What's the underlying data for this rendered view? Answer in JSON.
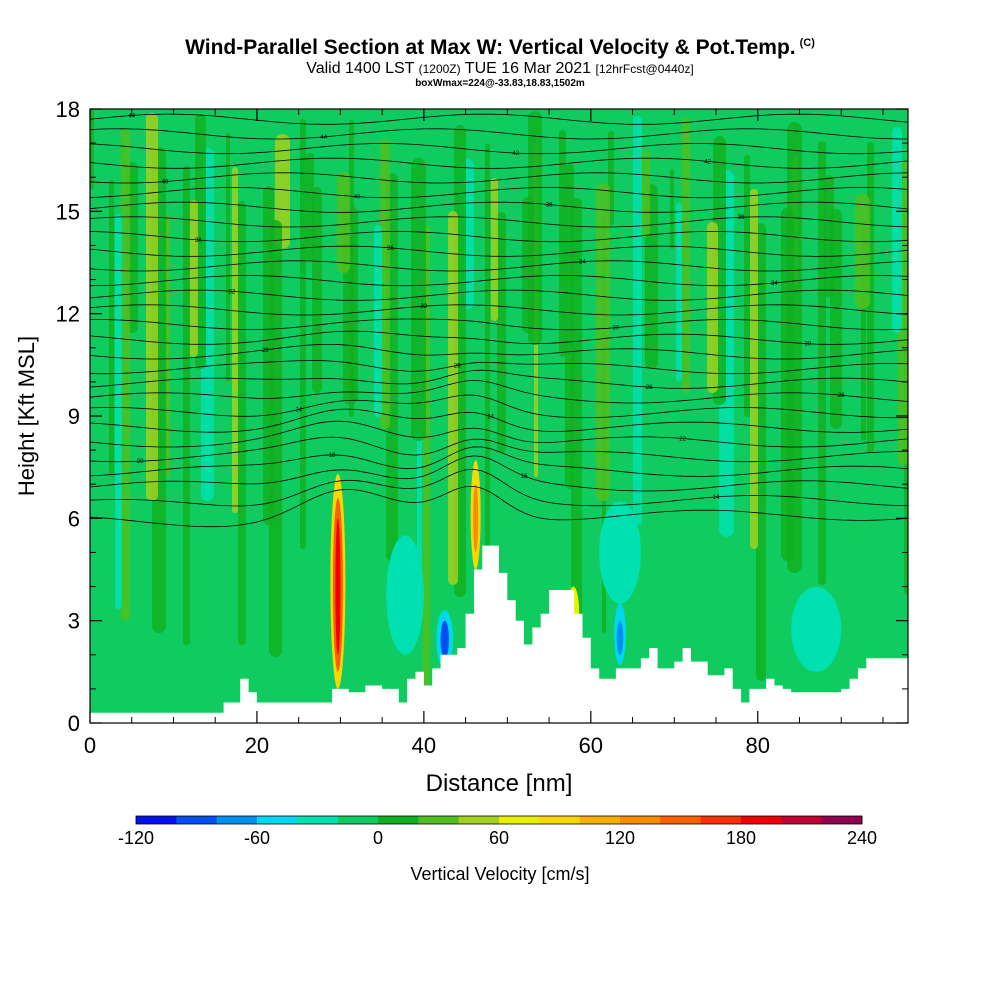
{
  "header": {
    "title": "Wind-Parallel Section at Max W: Vertical Velocity & Pot.Temp.",
    "copyright_mark": "(C)",
    "subtitle_main": "Valid 1400 LST",
    "subtitle_zulu": "(1200Z)",
    "subtitle_date": "TUE 16 Mar 2021",
    "subtitle_fcst": "[12hrFcst@0440z]",
    "box_info": "boxWmax=224@-33.83,18.83,1502m"
  },
  "chart_data": {
    "type": "heatmap",
    "xlabel": "Distance [nm]",
    "ylabel": "Height [Kft MSL]",
    "xlim": [
      0,
      98
    ],
    "ylim": [
      0,
      18
    ],
    "x_ticks": [
      0,
      20,
      40,
      60,
      80
    ],
    "y_ticks": [
      0,
      3,
      6,
      9,
      12,
      15,
      18
    ],
    "terrain": [
      [
        0,
        0.3
      ],
      [
        16,
        0.3
      ],
      [
        16,
        0.6
      ],
      [
        18,
        0.6
      ],
      [
        18,
        1.3
      ],
      [
        19,
        1.3
      ],
      [
        19,
        0.9
      ],
      [
        20,
        0.9
      ],
      [
        20,
        0.6
      ],
      [
        29,
        0.6
      ],
      [
        29,
        1.0
      ],
      [
        31,
        1.0
      ],
      [
        31,
        0.9
      ],
      [
        33,
        0.9
      ],
      [
        33,
        1.1
      ],
      [
        35,
        1.1
      ],
      [
        35,
        1.0
      ],
      [
        37,
        1.0
      ],
      [
        37,
        0.6
      ],
      [
        38,
        0.6
      ],
      [
        38,
        1.3
      ],
      [
        39,
        1.3
      ],
      [
        39,
        1.5
      ],
      [
        40,
        1.5
      ],
      [
        40,
        1.1
      ],
      [
        41,
        1.1
      ],
      [
        41,
        1.6
      ],
      [
        42,
        1.6
      ],
      [
        42,
        2.0
      ],
      [
        44,
        2.0
      ],
      [
        44,
        2.2
      ],
      [
        45,
        2.2
      ],
      [
        45,
        3.2
      ],
      [
        46,
        3.2
      ],
      [
        46,
        4.5
      ],
      [
        47,
        4.5
      ],
      [
        47,
        5.2
      ],
      [
        49,
        5.2
      ],
      [
        49,
        4.4
      ],
      [
        50,
        4.4
      ],
      [
        50,
        3.6
      ],
      [
        51,
        3.6
      ],
      [
        51,
        3.0
      ],
      [
        52,
        3.0
      ],
      [
        52,
        2.3
      ],
      [
        53,
        2.3
      ],
      [
        53,
        2.8
      ],
      [
        54,
        2.8
      ],
      [
        54,
        3.2
      ],
      [
        55,
        3.2
      ],
      [
        55,
        3.9
      ],
      [
        58,
        3.9
      ],
      [
        58,
        3.2
      ],
      [
        59,
        3.2
      ],
      [
        59,
        2.5
      ],
      [
        60,
        2.5
      ],
      [
        60,
        1.6
      ],
      [
        61,
        1.6
      ],
      [
        61,
        1.3
      ],
      [
        63,
        1.3
      ],
      [
        63,
        1.6
      ],
      [
        66,
        1.6
      ],
      [
        66,
        1.9
      ],
      [
        67,
        1.9
      ],
      [
        67,
        2.2
      ],
      [
        68,
        2.2
      ],
      [
        68,
        1.6
      ],
      [
        70,
        1.6
      ],
      [
        70,
        1.8
      ],
      [
        71,
        1.8
      ],
      [
        71,
        2.2
      ],
      [
        72,
        2.2
      ],
      [
        72,
        1.8
      ],
      [
        74,
        1.8
      ],
      [
        74,
        1.4
      ],
      [
        76,
        1.4
      ],
      [
        76,
        1.6
      ],
      [
        77,
        1.6
      ],
      [
        77,
        1.0
      ],
      [
        78,
        1.0
      ],
      [
        78,
        0.6
      ],
      [
        79,
        0.6
      ],
      [
        79,
        1.0
      ],
      [
        81,
        1.0
      ],
      [
        81,
        1.3
      ],
      [
        82,
        1.3
      ],
      [
        82,
        1.1
      ],
      [
        83,
        1.1
      ],
      [
        83,
        1.0
      ],
      [
        84,
        1.0
      ],
      [
        84,
        0.9
      ],
      [
        90,
        0.9
      ],
      [
        90,
        1.0
      ],
      [
        91,
        1.0
      ],
      [
        91,
        1.3
      ],
      [
        92,
        1.3
      ],
      [
        92,
        1.6
      ],
      [
        93,
        1.6
      ],
      [
        93,
        1.9
      ],
      [
        98,
        1.9
      ]
    ],
    "isentrope_labels": [
      "44",
      "44",
      "42",
      "42",
      "40",
      "40",
      "38",
      "38",
      "36",
      "36",
      "34",
      "34",
      "32",
      "32",
      "30",
      "30",
      "28",
      "28",
      "26",
      "26",
      "24",
      "24",
      "22",
      "20",
      "18",
      "16",
      "14"
    ]
  },
  "colorbar": {
    "label": "Vertical Velocity [cm/s]",
    "tick_labels": [
      "-120",
      "-60",
      "0",
      "60",
      "120",
      "180",
      "240"
    ],
    "colors": [
      "#0010ee",
      "#0050f0",
      "#0090f0",
      "#00d8f0",
      "#00e0b0",
      "#10cc60",
      "#10b020",
      "#50c020",
      "#a0d020",
      "#e8f000",
      "#f8d800",
      "#f8b000",
      "#f88c00",
      "#f86000",
      "#f83000",
      "#f00000",
      "#c00030",
      "#900050"
    ]
  }
}
